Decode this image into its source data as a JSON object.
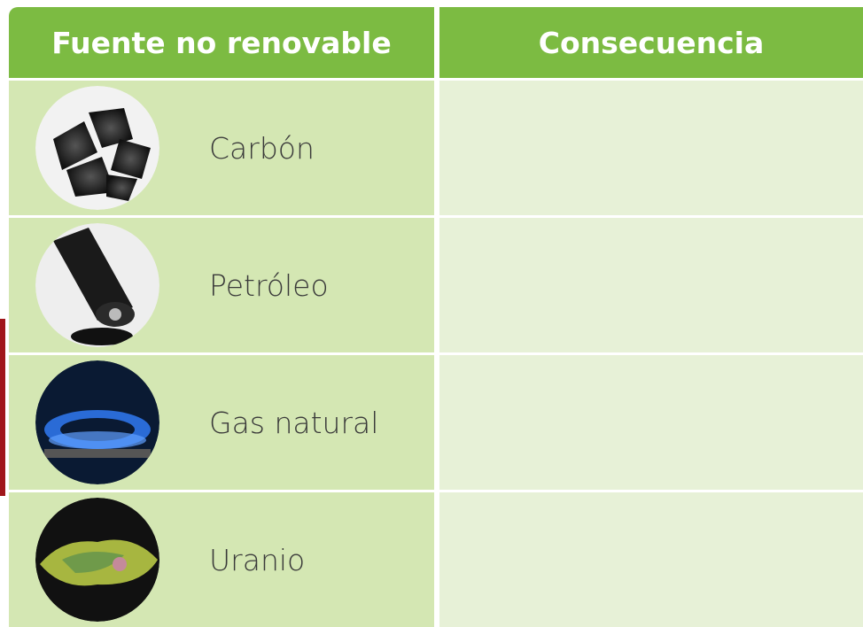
{
  "header": {
    "columns": [
      "Fuente no renovable",
      "Consecuencia"
    ]
  },
  "table": {
    "rows": [
      "Carbón",
      "Petróleo",
      "Gas natural",
      "Uranio"
    ]
  }
}
